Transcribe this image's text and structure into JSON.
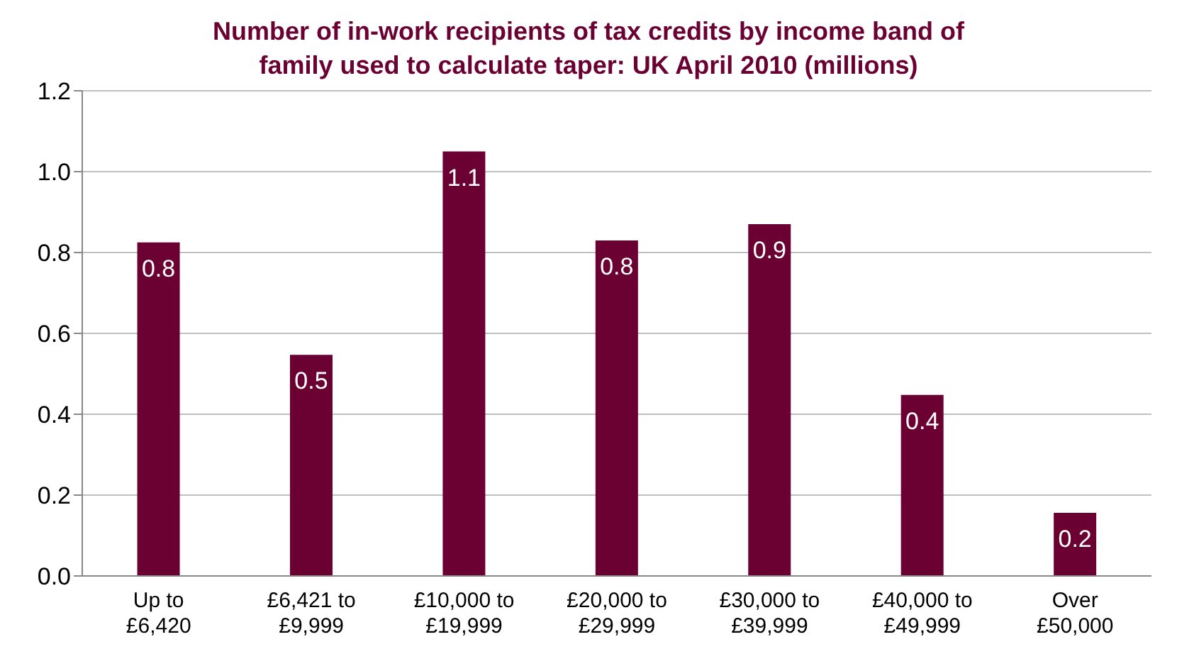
{
  "chart_data": {
    "type": "bar",
    "title": "Number of in-work recipients of tax credits by income band of family used to calculate taper: UK April 2010 (millions)",
    "categories": [
      "Up to £6,420",
      "£6,421 to £9,999",
      "£10,000 to £19,999",
      "£20,000 to £29,999",
      "£30,000 to £39,999",
      "£40,000 to £49,999",
      "Over £50,000"
    ],
    "values": [
      0.825,
      0.547,
      1.05,
      0.83,
      0.87,
      0.448,
      0.156
    ],
    "value_labels": [
      "0.8",
      "0.5",
      "1.1",
      "0.8",
      "0.9",
      "0.4",
      "0.2"
    ],
    "color": "#6b0032",
    "ylim": [
      0,
      1.2
    ],
    "yticks": [
      {
        "value": 0,
        "label": "0.0"
      },
      {
        "value": 0.2,
        "label": "0.2"
      },
      {
        "value": 0.4,
        "label": "0.4"
      },
      {
        "value": 0.6,
        "label": "0.6"
      },
      {
        "value": 0.8,
        "label": "0.8"
      },
      {
        "value": 1,
        "label": "1.0"
      },
      {
        "value": 1.2,
        "label": "1.2"
      }
    ],
    "grid": "y"
  }
}
